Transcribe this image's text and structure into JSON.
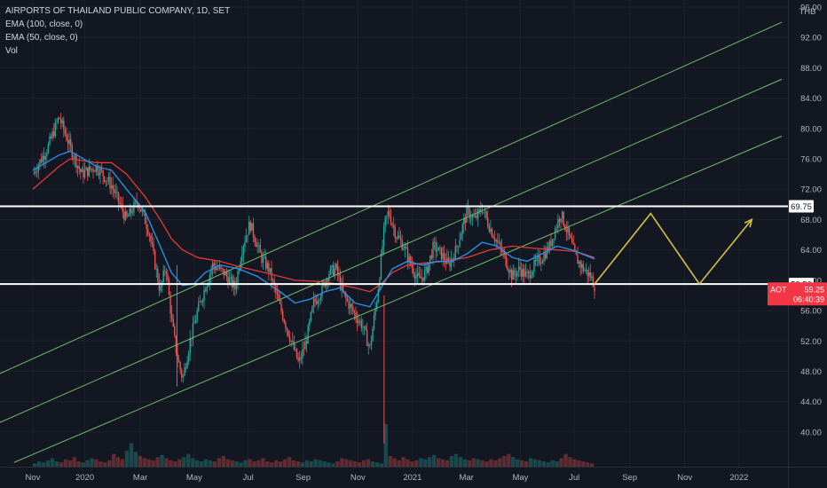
{
  "chart_data": {
    "type": "candlestick",
    "title": "AIRPORTS OF THAILAND PUBLIC COMPANY, 1D, SET",
    "legend": [
      "EMA (100, close, 0)",
      "EMA (50, close, 0)",
      "Vol"
    ],
    "currency": "THB",
    "ylim": [
      38,
      96
    ],
    "y_ticks": [
      "96.00",
      "92.00",
      "88.00",
      "84.00",
      "80.00",
      "76.00",
      "72.00",
      "68.00",
      "64.00",
      "60.00",
      "56.00",
      "52.00",
      "48.00",
      "44.00",
      "40.00"
    ],
    "x_ticks": [
      "Nov",
      "2020",
      "Mar",
      "May",
      "Jul",
      "Sep",
      "Nov",
      "2021",
      "Mar",
      "May",
      "Jul",
      "Sep",
      "Nov",
      "2022"
    ],
    "price_path": [
      [
        0,
        74.0
      ],
      [
        0.04,
        77.5
      ],
      [
        0.07,
        81.5
      ],
      [
        0.1,
        77.5
      ],
      [
        0.13,
        74.0
      ],
      [
        0.17,
        75.0
      ],
      [
        0.21,
        72.5
      ],
      [
        0.25,
        68.0
      ],
      [
        0.28,
        70.5
      ],
      [
        0.31,
        66.5
      ],
      [
        0.34,
        58.5
      ],
      [
        0.355,
        62.0
      ],
      [
        0.37,
        55.0
      ],
      [
        0.385,
        50.0
      ],
      [
        0.4,
        47.0
      ],
      [
        0.42,
        52.0
      ],
      [
        0.44,
        56.0
      ],
      [
        0.46,
        59.0
      ],
      [
        0.48,
        62.0
      ],
      [
        0.51,
        61.0
      ],
      [
        0.54,
        59.0
      ],
      [
        0.56,
        64.5
      ],
      [
        0.58,
        67.5
      ],
      [
        0.61,
        63.0
      ],
      [
        0.63,
        61.5
      ],
      [
        0.66,
        56.5
      ],
      [
        0.69,
        52.0
      ],
      [
        0.71,
        49.0
      ],
      [
        0.73,
        52.0
      ],
      [
        0.75,
        57.0
      ],
      [
        0.77,
        58.5
      ],
      [
        0.79,
        61.0
      ],
      [
        0.81,
        61.5
      ],
      [
        0.83,
        58.0
      ],
      [
        0.86,
        55.5
      ],
      [
        0.88,
        54.0
      ],
      [
        0.9,
        51.0
      ],
      [
        0.92,
        58.0
      ],
      [
        0.94,
        67.5
      ],
      [
        0.95,
        69.0
      ],
      [
        0.97,
        66.0
      ],
      [
        0.99,
        64.5
      ],
      [
        1.01,
        62.0
      ],
      [
        1.03,
        60.0
      ],
      [
        1.05,
        61.0
      ],
      [
        1.07,
        64.5
      ],
      [
        1.09,
        63.5
      ],
      [
        1.11,
        62.0
      ],
      [
        1.13,
        64.0
      ],
      [
        1.15,
        67.5
      ],
      [
        1.16,
        69.0
      ],
      [
        1.18,
        68.0
      ],
      [
        1.2,
        69.5
      ],
      [
        1.22,
        67.0
      ],
      [
        1.24,
        65.0
      ],
      [
        1.26,
        63.0
      ],
      [
        1.28,
        60.5
      ],
      [
        1.3,
        61.5
      ],
      [
        1.32,
        60.5
      ],
      [
        1.34,
        62.0
      ],
      [
        1.36,
        63.0
      ],
      [
        1.38,
        64.5
      ],
      [
        1.4,
        67.5
      ],
      [
        1.41,
        68.8
      ],
      [
        1.43,
        66.0
      ],
      [
        1.45,
        63.0
      ],
      [
        1.47,
        61.5
      ],
      [
        1.49,
        60.5
      ],
      [
        1.5,
        59.25
      ]
    ],
    "ema_50": [
      [
        0,
        74.5
      ],
      [
        0.07,
        76.5
      ],
      [
        0.1,
        77.0
      ],
      [
        0.17,
        75.0
      ],
      [
        0.21,
        74.5
      ],
      [
        0.25,
        72.0
      ],
      [
        0.3,
        69.0
      ],
      [
        0.34,
        64.5
      ],
      [
        0.37,
        61.0
      ],
      [
        0.4,
        59.3
      ],
      [
        0.43,
        59.5
      ],
      [
        0.46,
        61.0
      ],
      [
        0.5,
        62.0
      ],
      [
        0.55,
        61.5
      ],
      [
        0.6,
        60.5
      ],
      [
        0.66,
        58.5
      ],
      [
        0.7,
        57.0
      ],
      [
        0.74,
        57.5
      ],
      [
        0.78,
        58.5
      ],
      [
        0.82,
        59.0
      ],
      [
        0.86,
        57.0
      ],
      [
        0.9,
        56.5
      ],
      [
        0.93,
        59.0
      ],
      [
        0.96,
        61.5
      ],
      [
        1.0,
        62.5
      ],
      [
        1.04,
        62.0
      ],
      [
        1.08,
        62.5
      ],
      [
        1.12,
        62.5
      ],
      [
        1.16,
        63.5
      ],
      [
        1.2,
        65.0
      ],
      [
        1.24,
        64.5
      ],
      [
        1.28,
        63.0
      ],
      [
        1.32,
        62.5
      ],
      [
        1.36,
        63.5
      ],
      [
        1.4,
        64.5
      ],
      [
        1.44,
        64.0
      ],
      [
        1.48,
        63.2
      ],
      [
        1.5,
        62.8
      ]
    ],
    "ema_100": [
      [
        0,
        72.0
      ],
      [
        0.07,
        75.0
      ],
      [
        0.1,
        76.0
      ],
      [
        0.17,
        75.5
      ],
      [
        0.21,
        75.5
      ],
      [
        0.25,
        74.0
      ],
      [
        0.3,
        71.0
      ],
      [
        0.34,
        68.0
      ],
      [
        0.37,
        65.5
      ],
      [
        0.4,
        64.0
      ],
      [
        0.44,
        63.0
      ],
      [
        0.5,
        62.5
      ],
      [
        0.55,
        61.8
      ],
      [
        0.62,
        61.0
      ],
      [
        0.7,
        60.0
      ],
      [
        0.78,
        59.8
      ],
      [
        0.86,
        59.0
      ],
      [
        0.9,
        58.5
      ],
      [
        0.93,
        59.5
      ],
      [
        0.96,
        61.0
      ],
      [
        1.0,
        62.0
      ],
      [
        1.05,
        62.3
      ],
      [
        1.1,
        62.5
      ],
      [
        1.16,
        63.0
      ],
      [
        1.22,
        64.0
      ],
      [
        1.28,
        64.5
      ],
      [
        1.34,
        64.2
      ],
      [
        1.4,
        64.0
      ],
      [
        1.45,
        63.8
      ],
      [
        1.5,
        63.0
      ]
    ],
    "vol_bars": [
      3,
      5,
      4,
      6,
      8,
      5,
      4,
      7,
      6,
      9,
      5,
      4,
      6,
      8,
      7,
      5,
      4,
      6,
      12,
      9,
      7,
      15,
      22,
      14,
      10,
      8,
      7,
      6,
      9,
      11,
      8,
      6,
      5,
      7,
      9,
      12,
      8,
      6,
      5,
      7,
      6,
      5,
      8,
      10,
      7,
      6,
      5,
      4,
      6,
      7,
      5,
      6,
      8,
      5,
      4,
      6,
      5,
      7,
      9,
      6,
      5,
      4,
      6,
      5,
      7,
      6,
      5,
      4,
      3,
      5,
      8,
      7,
      6,
      5,
      4,
      6,
      7,
      5,
      4,
      3,
      40,
      10,
      8,
      6,
      9,
      7,
      5,
      6,
      8,
      7,
      9,
      11,
      8,
      7,
      6,
      10,
      12,
      9,
      7,
      6,
      8,
      7,
      6,
      5,
      7,
      6,
      8,
      10,
      12,
      9,
      7,
      6,
      5,
      8,
      7,
      6,
      5,
      4,
      6,
      5,
      8,
      12,
      9,
      7,
      6,
      5,
      4,
      3
    ],
    "channel": {
      "lower": [
        [
          -0.05,
          36.0
        ],
        [
          2.0,
          79.0
        ]
      ],
      "middle": [
        [
          -0.1,
          41.0
        ],
        [
          2.0,
          86.5
        ]
      ],
      "upper": [
        [
          -0.12,
          47.0
        ],
        [
          2.0,
          94.0
        ]
      ]
    },
    "resistance": 69.75,
    "support": 59.5,
    "resistance_label": "69.75",
    "support_label": "59.50",
    "last_price": "59.25",
    "last_price_value": 59.25,
    "symbol": "AOT",
    "countdown": "06:40:39",
    "projection": [
      [
        1.5,
        59.5
      ],
      [
        1.65,
        68.8
      ],
      [
        1.78,
        59.5
      ],
      [
        1.92,
        68.0
      ]
    ],
    "colors": {
      "background": "#131722",
      "up": "#26a69a",
      "down": "#ef5350",
      "ema50": "#2196f3",
      "ema100": "#e53935",
      "channel": "#6dbb6b",
      "level": "#ffffff",
      "projection": "#d4c240",
      "axis_text": "#b2b5be",
      "grid": "#1e222d"
    }
  }
}
